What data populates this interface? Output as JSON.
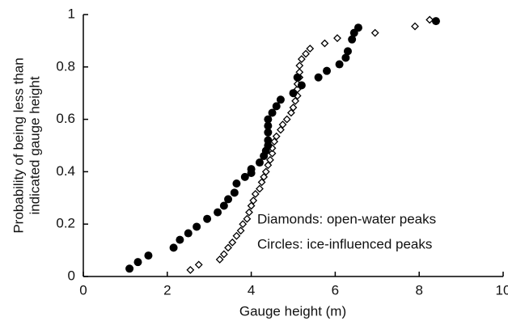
{
  "chart_data": {
    "type": "scatter",
    "xlabel": "Gauge height (m)",
    "ylabel": [
      "Probability of being less than",
      "indicated gauge height"
    ],
    "xlim": [
      0,
      10
    ],
    "ylim": [
      0,
      1
    ],
    "xticks": [
      0,
      2,
      4,
      6,
      8,
      10
    ],
    "yticks": [
      0,
      0.2,
      0.4,
      0.6,
      0.8,
      1
    ],
    "grid": false,
    "legend": "lower right",
    "series": [
      {
        "name": "Diamonds: open-water peaks",
        "marker": "diamond",
        "color": "#000000",
        "x": [
          2.55,
          2.75,
          3.25,
          3.35,
          3.45,
          3.55,
          3.65,
          3.75,
          3.8,
          3.9,
          3.95,
          4.0,
          4.05,
          4.1,
          4.2,
          4.25,
          4.3,
          4.35,
          4.4,
          4.45,
          4.5,
          4.5,
          4.55,
          4.6,
          4.7,
          4.75,
          4.85,
          4.95,
          5.0,
          5.05,
          5.1,
          5.1,
          5.1,
          5.15,
          5.15,
          5.15,
          5.2,
          5.3,
          5.4,
          5.75,
          6.05,
          6.95,
          7.9,
          8.25
        ],
        "y": [
          0.025,
          0.045,
          0.065,
          0.085,
          0.11,
          0.13,
          0.155,
          0.175,
          0.2,
          0.22,
          0.245,
          0.27,
          0.29,
          0.315,
          0.335,
          0.36,
          0.38,
          0.4,
          0.425,
          0.445,
          0.47,
          0.49,
          0.515,
          0.535,
          0.56,
          0.58,
          0.6,
          0.625,
          0.645,
          0.67,
          0.69,
          0.715,
          0.735,
          0.76,
          0.78,
          0.805,
          0.83,
          0.85,
          0.87,
          0.89,
          0.91,
          0.93,
          0.955,
          0.98
        ]
      },
      {
        "name": "Circles: ice-influenced peaks",
        "marker": "circle",
        "color": "#000000",
        "x": [
          1.1,
          1.3,
          1.55,
          2.15,
          2.3,
          2.5,
          2.7,
          2.95,
          3.2,
          3.35,
          3.45,
          3.6,
          3.65,
          3.85,
          4.0,
          4.0,
          4.2,
          4.3,
          4.35,
          4.4,
          4.4,
          4.4,
          4.4,
          4.4,
          4.5,
          4.6,
          4.7,
          5.0,
          5.2,
          5.1,
          5.6,
          5.8,
          6.1,
          6.25,
          6.3,
          6.4,
          6.45,
          6.55,
          8.4
        ],
        "y": [
          0.03,
          0.055,
          0.08,
          0.11,
          0.14,
          0.165,
          0.19,
          0.22,
          0.245,
          0.27,
          0.295,
          0.32,
          0.355,
          0.38,
          0.41,
          0.395,
          0.435,
          0.46,
          0.48,
          0.5,
          0.52,
          0.55,
          0.575,
          0.6,
          0.625,
          0.65,
          0.675,
          0.7,
          0.73,
          0.76,
          0.76,
          0.785,
          0.81,
          0.835,
          0.86,
          0.905,
          0.93,
          0.95,
          0.975
        ]
      }
    ]
  }
}
